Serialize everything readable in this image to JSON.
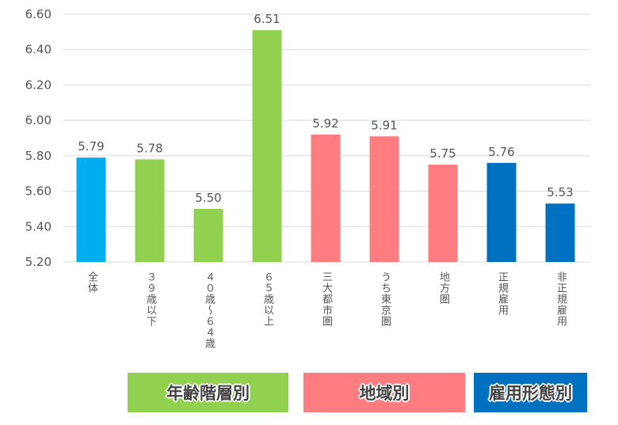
{
  "chart_data": {
    "type": "bar",
    "categories": [
      "全体",
      "３９歳以下",
      "４０歳～６４歳",
      "６５歳以上",
      "三大都市圏",
      "うち東京圏",
      "地方圏",
      "正規雇用",
      "非正規雇用"
    ],
    "values": [
      5.79,
      5.78,
      5.5,
      6.51,
      5.92,
      5.91,
      5.75,
      5.76,
      5.53
    ],
    "value_labels": [
      "5.79",
      "5.78",
      "5.50",
      "6.51",
      "5.92",
      "5.91",
      "5.75",
      "5.76",
      "5.53"
    ],
    "colors": [
      "#00AEEF",
      "#92D050",
      "#92D050",
      "#92D050",
      "#FF7C80",
      "#FF7C80",
      "#FF7C80",
      "#0070C0",
      "#0070C0"
    ],
    "ylim": [
      5.2,
      6.6
    ],
    "yticks": [
      "5.20",
      "5.40",
      "5.60",
      "5.80",
      "6.00",
      "6.20",
      "6.40",
      "6.60"
    ],
    "grid": true,
    "groups": [
      {
        "label": "年齢階層別",
        "color": "#92D050"
      },
      {
        "label": "地域別",
        "color": "#FF7C80"
      },
      {
        "label": "雇用形態別",
        "color": "#0070C0"
      }
    ]
  }
}
